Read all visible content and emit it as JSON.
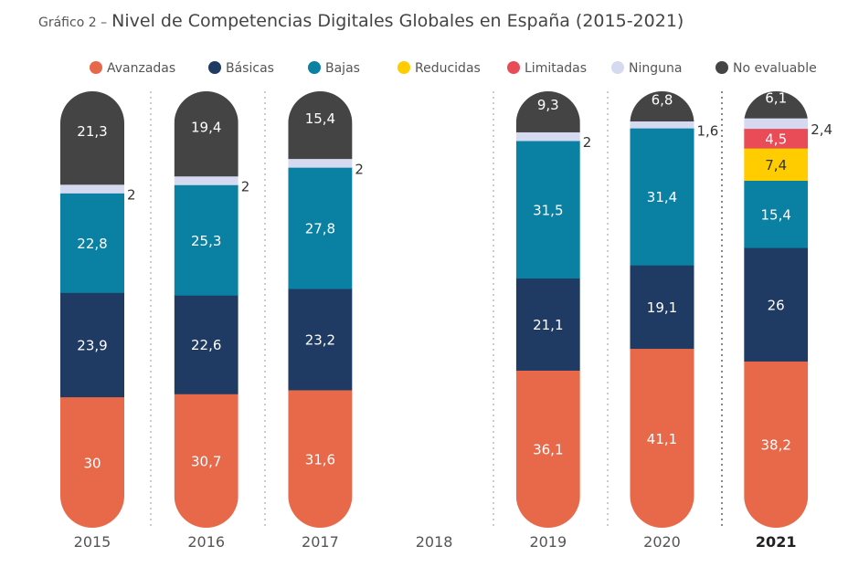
{
  "title_prefix": "Gráfico 2 –",
  "title": "Nivel de Competencias Digitales Globales en España (2015-2021)",
  "chart_data": {
    "type": "bar",
    "stacked": true,
    "legend_position": "top",
    "grid": false,
    "categories": [
      "2015",
      "2016",
      "2017",
      "2018",
      "2019",
      "2020",
      "2021"
    ],
    "highlighted_category": "2021",
    "ylim": [
      0,
      100
    ],
    "series": [
      {
        "name": "Avanzadas",
        "color": "#E8694A",
        "label_color": "#ffffff",
        "values": [
          30,
          30.7,
          31.6,
          null,
          36.1,
          41.1,
          38.2
        ]
      },
      {
        "name": "Básicas",
        "color": "#1F3A63",
        "label_color": "#ffffff",
        "values": [
          23.9,
          22.6,
          23.2,
          null,
          21.1,
          19.1,
          26
        ]
      },
      {
        "name": "Bajas",
        "color": "#0A80A3",
        "label_color": "#ffffff",
        "values": [
          22.8,
          25.3,
          27.8,
          null,
          31.5,
          31.4,
          15.4
        ]
      },
      {
        "name": "Reducidas",
        "color": "#FFCC00",
        "label_color": "#333333",
        "values": [
          null,
          null,
          null,
          null,
          null,
          null,
          7.4
        ]
      },
      {
        "name": "Limitadas",
        "color": "#E94B57",
        "label_color": "#ffffff",
        "values": [
          null,
          null,
          null,
          null,
          null,
          null,
          4.5
        ]
      },
      {
        "name": "Ninguna",
        "color": "#D5DAF0",
        "label_color": "#333333",
        "label_outside": true,
        "values": [
          2,
          2,
          2,
          null,
          2,
          1.6,
          2.4
        ]
      },
      {
        "name": "No evaluable",
        "color": "#444444",
        "label_color": "#ffffff",
        "values": [
          21.3,
          19.4,
          15.4,
          null,
          9.3,
          6.8,
          6.1
        ]
      }
    ]
  }
}
